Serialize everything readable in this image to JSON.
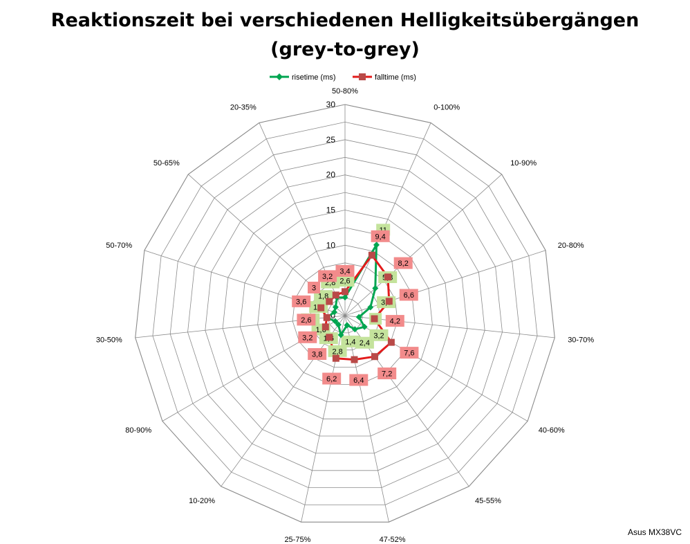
{
  "chart_data": {
    "type": "radar",
    "title": "Reaktionszeit bei verschiedenen Helligkeitsübergängen",
    "subtitle": "(grey-to-grey)",
    "categories": [
      "50-80%",
      "0-100%",
      "10-90%",
      "20-80%",
      "30-70%",
      "40-60%",
      "45-55%",
      "47-52%",
      "25-75%",
      "10-20%",
      "80-90%",
      "30-50%",
      "50-70%",
      "50-65%",
      "20-35%"
    ],
    "radial_ticks": [
      "0",
      "5",
      "10",
      "15",
      "20",
      "25",
      "30"
    ],
    "rmax": 30,
    "ring_step": 2.5,
    "grid": true,
    "legend_position": "top",
    "series": [
      {
        "name": "risetime (ms)",
        "color": "#00a550",
        "marker": "diamond",
        "values": [
          2.6,
          11,
          5.8,
          3.8,
          2,
          3.2,
          2.4,
          1.4,
          2.8,
          1.6,
          1.6,
          2.6,
          1.6,
          1.8,
          2.8
        ],
        "labels": [
          "2,6",
          "11",
          "5,8",
          "3,8",
          "2",
          "3,2",
          "2,4",
          "1,4",
          "2,8",
          "1,6",
          "1,6",
          "2,6",
          "1,6",
          "1,8",
          "2,8"
        ],
        "label_bg": "#c4e39c"
      },
      {
        "name": "falltime (ms)",
        "color": "#e31b1b",
        "marker": "square",
        "values": [
          3.4,
          9.4,
          8.2,
          6.6,
          4.2,
          7.6,
          7.2,
          6.4,
          6.2,
          3.8,
          3.2,
          2.6,
          3.6,
          3,
          3.2
        ],
        "labels": [
          "3,4",
          "9,4",
          "8,2",
          "6,6",
          "4,2",
          "7,6",
          "7,2",
          "6,4",
          "6,2",
          "3,8",
          "3,2",
          "2,6",
          "3,6",
          "3",
          "3,2"
        ],
        "label_bg": "#f28b8b"
      }
    ]
  },
  "credit": "Asus MX38VC"
}
